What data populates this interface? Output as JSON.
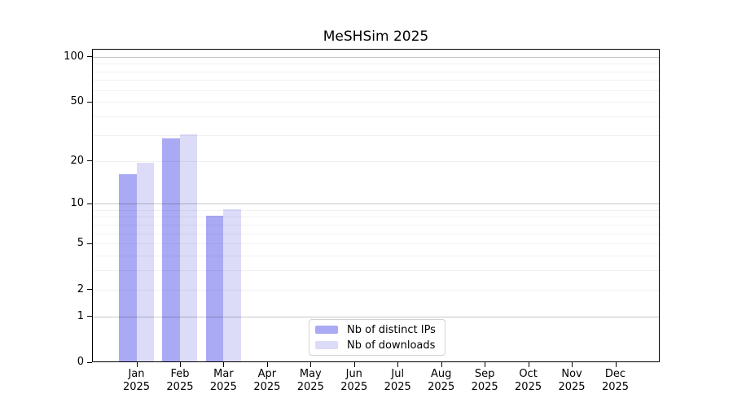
{
  "title": "MeSHSim 2025",
  "legend": {
    "items": [
      {
        "label": "Nb of distinct IPs",
        "color": "#aaaaf4"
      },
      {
        "label": "Nb of downloads",
        "color": "#dcdcf8"
      }
    ]
  },
  "chart_data": {
    "type": "bar",
    "title": "MeSHSim 2025",
    "scale": "log10(value+1)",
    "grid": "horizontal major (1,10,100) + minor log lines, drawn over bars",
    "legend_position": "lower center",
    "categories": [
      "Jan 2025",
      "Feb 2025",
      "Mar 2025",
      "Apr 2025",
      "May 2025",
      "Jun 2025",
      "Jul 2025",
      "Aug 2025",
      "Sep 2025",
      "Oct 2025",
      "Nov 2025",
      "Dec 2025"
    ],
    "y_ticks": [
      0,
      1,
      2,
      5,
      10,
      20,
      50,
      100
    ],
    "ylim": [
      0,
      113
    ],
    "xlabel": "",
    "ylabel": "",
    "series": [
      {
        "name": "Nb of distinct IPs",
        "color": "#aaaaf4",
        "values": [
          16,
          28,
          8,
          null,
          null,
          null,
          null,
          null,
          null,
          null,
          null,
          null
        ]
      },
      {
        "name": "Nb of downloads",
        "color": "#dcdcf8",
        "values": [
          19,
          30,
          9,
          null,
          null,
          null,
          null,
          null,
          null,
          null,
          null,
          null
        ]
      }
    ]
  }
}
